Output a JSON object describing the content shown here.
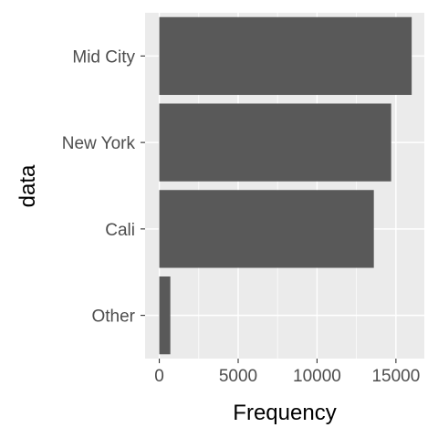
{
  "chart_data": {
    "type": "bar",
    "orientation": "horizontal",
    "categories": [
      "Mid City",
      "New York",
      "Cali",
      "Other"
    ],
    "values": [
      16000,
      14700,
      13600,
      700
    ],
    "xlabel": "Frequency",
    "ylabel": "data",
    "x_ticks": [
      0,
      5000,
      10000,
      15000
    ],
    "x_tick_labels": [
      "0",
      "5000",
      "10000",
      "15000"
    ],
    "xlim": [
      -900,
      16800
    ],
    "grid": true
  },
  "colors": {
    "panel_background": "#ebebeb",
    "grid_major": "#ffffff",
    "bar_fill": "#595959",
    "tick_text": "#4d4d4d",
    "axis_title_text": "#000000"
  }
}
